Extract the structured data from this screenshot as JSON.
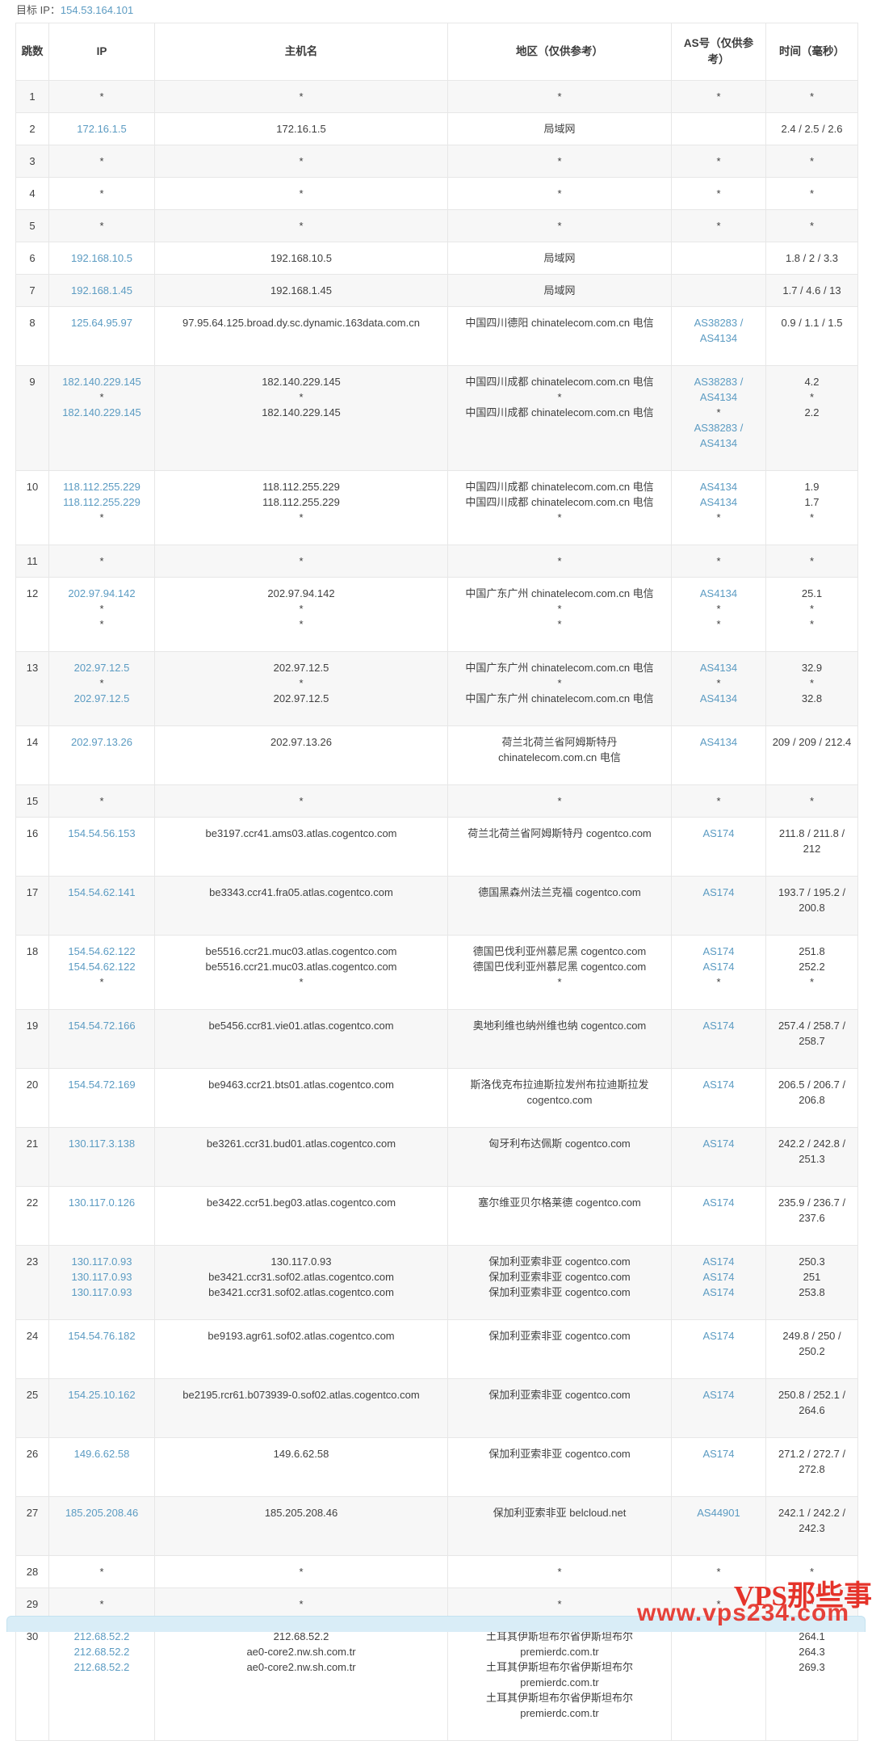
{
  "page": {
    "target_ip_label": "目标 IP：",
    "target_ip": "154.53.164.101"
  },
  "colors": {
    "link": "#5b9bc2",
    "stripe": "#f7f7f7",
    "watermark": "#e5332a",
    "bar": "#d9edf7"
  },
  "watermark": {
    "url_text": "www.vps234.com",
    "brand_text": "VPS那些事"
  },
  "table": {
    "headers": [
      "跳数",
      "IP",
      "主机名",
      "地区（仅供参考）",
      "AS号（仅供参考）",
      "时间（毫秒）"
    ],
    "rows": [
      {
        "hop": 1,
        "ip": [
          "*"
        ],
        "host": [
          "*"
        ],
        "region": [
          "*"
        ],
        "asn": [
          "*"
        ],
        "time": [
          "*"
        ]
      },
      {
        "hop": 2,
        "ip": [
          "172.16.1.5"
        ],
        "host": [
          "172.16.1.5"
        ],
        "region": [
          "局域网"
        ],
        "asn": [
          ""
        ],
        "time": [
          "2.4 / 2.5 / 2.6"
        ]
      },
      {
        "hop": 3,
        "ip": [
          "*"
        ],
        "host": [
          "*"
        ],
        "region": [
          "*"
        ],
        "asn": [
          "*"
        ],
        "time": [
          "*"
        ]
      },
      {
        "hop": 4,
        "ip": [
          "*"
        ],
        "host": [
          "*"
        ],
        "region": [
          "*"
        ],
        "asn": [
          "*"
        ],
        "time": [
          "*"
        ]
      },
      {
        "hop": 5,
        "ip": [
          "*"
        ],
        "host": [
          "*"
        ],
        "region": [
          "*"
        ],
        "asn": [
          "*"
        ],
        "time": [
          "*"
        ]
      },
      {
        "hop": 6,
        "ip": [
          "192.168.10.5"
        ],
        "host": [
          "192.168.10.5"
        ],
        "region": [
          "局域网"
        ],
        "asn": [
          ""
        ],
        "time": [
          "1.8 / 2 / 3.3"
        ]
      },
      {
        "hop": 7,
        "ip": [
          "192.168.1.45"
        ],
        "host": [
          "192.168.1.45"
        ],
        "region": [
          "局域网"
        ],
        "asn": [
          ""
        ],
        "time": [
          "1.7 / 4.6 / 13"
        ]
      },
      {
        "hop": 8,
        "ip": [
          "125.64.95.97"
        ],
        "host": [
          "97.95.64.125.broad.dy.sc.dynamic.163data.com.cn"
        ],
        "region": [
          "中国四川德阳 chinatelecom.com.cn 电信"
        ],
        "asn": [
          "AS38283 / AS4134"
        ],
        "time": [
          "0.9 / 1.1 / 1.5"
        ]
      },
      {
        "hop": 9,
        "ip": [
          "182.140.229.145",
          "*",
          "182.140.229.145"
        ],
        "host": [
          "182.140.229.145",
          "*",
          "182.140.229.145"
        ],
        "region": [
          "中国四川成都 chinatelecom.com.cn 电信",
          "*",
          "中国四川成都 chinatelecom.com.cn 电信"
        ],
        "asn": [
          "AS38283 / AS4134",
          "*",
          "AS38283 / AS4134"
        ],
        "time": [
          "4.2",
          "*",
          "2.2"
        ]
      },
      {
        "hop": 10,
        "ip": [
          "118.112.255.229",
          "118.112.255.229",
          "*"
        ],
        "host": [
          "118.112.255.229",
          "118.112.255.229",
          "*"
        ],
        "region": [
          "中国四川成都 chinatelecom.com.cn 电信",
          "中国四川成都 chinatelecom.com.cn 电信",
          "*"
        ],
        "asn": [
          "AS4134",
          "AS4134",
          "*"
        ],
        "time": [
          "1.9",
          "1.7",
          "*"
        ]
      },
      {
        "hop": 11,
        "ip": [
          "*"
        ],
        "host": [
          "*"
        ],
        "region": [
          "*"
        ],
        "asn": [
          "*"
        ],
        "time": [
          "*"
        ]
      },
      {
        "hop": 12,
        "ip": [
          "202.97.94.142",
          "*",
          "*"
        ],
        "host": [
          "202.97.94.142",
          "*",
          "*"
        ],
        "region": [
          "中国广东广州 chinatelecom.com.cn 电信",
          "*",
          "*"
        ],
        "asn": [
          "AS4134",
          "*",
          "*"
        ],
        "time": [
          "25.1",
          "*",
          "*"
        ]
      },
      {
        "hop": 13,
        "ip": [
          "202.97.12.5",
          "*",
          "202.97.12.5"
        ],
        "host": [
          "202.97.12.5",
          "*",
          "202.97.12.5"
        ],
        "region": [
          "中国广东广州 chinatelecom.com.cn 电信",
          "*",
          "中国广东广州 chinatelecom.com.cn 电信"
        ],
        "asn": [
          "AS4134",
          "*",
          "AS4134"
        ],
        "time": [
          "32.9",
          "*",
          "32.8"
        ]
      },
      {
        "hop": 14,
        "ip": [
          "202.97.13.26"
        ],
        "host": [
          "202.97.13.26"
        ],
        "region": [
          "荷兰北荷兰省阿姆斯特丹 chinatelecom.com.cn 电信"
        ],
        "asn": [
          "AS4134"
        ],
        "time": [
          "209 / 209 / 212.4"
        ]
      },
      {
        "hop": 15,
        "ip": [
          "*"
        ],
        "host": [
          "*"
        ],
        "region": [
          "*"
        ],
        "asn": [
          "*"
        ],
        "time": [
          "*"
        ]
      },
      {
        "hop": 16,
        "ip": [
          "154.54.56.153"
        ],
        "host": [
          "be3197.ccr41.ams03.atlas.cogentco.com"
        ],
        "region": [
          "荷兰北荷兰省阿姆斯特丹 cogentco.com"
        ],
        "asn": [
          "AS174"
        ],
        "time": [
          "211.8 / 211.8 / 212"
        ]
      },
      {
        "hop": 17,
        "ip": [
          "154.54.62.141"
        ],
        "host": [
          "be3343.ccr41.fra05.atlas.cogentco.com"
        ],
        "region": [
          "德国黑森州法兰克福 cogentco.com"
        ],
        "asn": [
          "AS174"
        ],
        "time": [
          "193.7 / 195.2 / 200.8"
        ]
      },
      {
        "hop": 18,
        "ip": [
          "154.54.62.122",
          "154.54.62.122",
          "*"
        ],
        "host": [
          "be5516.ccr21.muc03.atlas.cogentco.com",
          "be5516.ccr21.muc03.atlas.cogentco.com",
          "*"
        ],
        "region": [
          "德国巴伐利亚州慕尼黑 cogentco.com",
          "德国巴伐利亚州慕尼黑 cogentco.com",
          "*"
        ],
        "asn": [
          "AS174",
          "AS174",
          "*"
        ],
        "time": [
          "251.8",
          "252.2",
          "*"
        ]
      },
      {
        "hop": 19,
        "ip": [
          "154.54.72.166"
        ],
        "host": [
          "be5456.ccr81.vie01.atlas.cogentco.com"
        ],
        "region": [
          "奥地利维也纳州维也纳 cogentco.com"
        ],
        "asn": [
          "AS174"
        ],
        "time": [
          "257.4 / 258.7 / 258.7"
        ]
      },
      {
        "hop": 20,
        "ip": [
          "154.54.72.169"
        ],
        "host": [
          "be9463.ccr21.bts01.atlas.cogentco.com"
        ],
        "region": [
          "斯洛伐克布拉迪斯拉发州布拉迪斯拉发 cogentco.com"
        ],
        "asn": [
          "AS174"
        ],
        "time": [
          "206.5 / 206.7 / 206.8"
        ]
      },
      {
        "hop": 21,
        "ip": [
          "130.117.3.138"
        ],
        "host": [
          "be3261.ccr31.bud01.atlas.cogentco.com"
        ],
        "region": [
          "匈牙利布达佩斯 cogentco.com"
        ],
        "asn": [
          "AS174"
        ],
        "time": [
          "242.2 / 242.8 / 251.3"
        ]
      },
      {
        "hop": 22,
        "ip": [
          "130.117.0.126"
        ],
        "host": [
          "be3422.ccr51.beg03.atlas.cogentco.com"
        ],
        "region": [
          "塞尔维亚贝尔格莱德 cogentco.com"
        ],
        "asn": [
          "AS174"
        ],
        "time": [
          "235.9 / 236.7 / 237.6"
        ]
      },
      {
        "hop": 23,
        "ip": [
          "130.117.0.93",
          "130.117.0.93",
          "130.117.0.93"
        ],
        "host": [
          "130.117.0.93",
          "be3421.ccr31.sof02.atlas.cogentco.com",
          "be3421.ccr31.sof02.atlas.cogentco.com"
        ],
        "region": [
          "保加利亚索非亚 cogentco.com",
          "保加利亚索非亚 cogentco.com",
          "保加利亚索非亚 cogentco.com"
        ],
        "asn": [
          "AS174",
          "AS174",
          "AS174"
        ],
        "time": [
          "250.3",
          "251",
          "253.8"
        ]
      },
      {
        "hop": 24,
        "ip": [
          "154.54.76.182"
        ],
        "host": [
          "be9193.agr61.sof02.atlas.cogentco.com"
        ],
        "region": [
          "保加利亚索非亚 cogentco.com"
        ],
        "asn": [
          "AS174"
        ],
        "time": [
          "249.8 / 250 / 250.2"
        ]
      },
      {
        "hop": 25,
        "ip": [
          "154.25.10.162"
        ],
        "host": [
          "be2195.rcr61.b073939-0.sof02.atlas.cogentco.com"
        ],
        "region": [
          "保加利亚索非亚 cogentco.com"
        ],
        "asn": [
          "AS174"
        ],
        "time": [
          "250.8 / 252.1 / 264.6"
        ]
      },
      {
        "hop": 26,
        "ip": [
          "149.6.62.58"
        ],
        "host": [
          "149.6.62.58"
        ],
        "region": [
          "保加利亚索非亚 cogentco.com"
        ],
        "asn": [
          "AS174"
        ],
        "time": [
          "271.2 / 272.7 / 272.8"
        ]
      },
      {
        "hop": 27,
        "ip": [
          "185.205.208.46"
        ],
        "host": [
          "185.205.208.46"
        ],
        "region": [
          "保加利亚索非亚 belcloud.net"
        ],
        "asn": [
          "AS44901"
        ],
        "time": [
          "242.1 / 242.2 / 242.3"
        ]
      },
      {
        "hop": 28,
        "ip": [
          "*"
        ],
        "host": [
          "*"
        ],
        "region": [
          "*"
        ],
        "asn": [
          "*"
        ],
        "time": [
          "*"
        ]
      },
      {
        "hop": 29,
        "ip": [
          "*"
        ],
        "host": [
          "*"
        ],
        "region": [
          "*"
        ],
        "asn": [
          "*"
        ],
        "time": [
          "*"
        ]
      },
      {
        "hop": 30,
        "ip": [
          "212.68.52.2",
          "212.68.52.2",
          "212.68.52.2"
        ],
        "host": [
          "212.68.52.2",
          "ae0-core2.nw.sh.com.tr",
          "ae0-core2.nw.sh.com.tr"
        ],
        "region": [
          "土耳其伊斯坦布尔省伊斯坦布尔 premierdc.com.tr",
          "土耳其伊斯坦布尔省伊斯坦布尔 premierdc.com.tr",
          "土耳其伊斯坦布尔省伊斯坦布尔 premierdc.com.tr"
        ],
        "asn": [
          ""
        ],
        "time": [
          "264.1",
          "264.3",
          "269.3"
        ]
      }
    ]
  }
}
